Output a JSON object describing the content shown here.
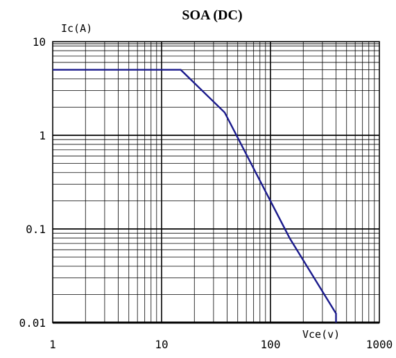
{
  "chart_data": {
    "type": "line",
    "title": "SOA (DC)",
    "xlabel": "Vce(v)",
    "ylabel": "Ic(A)",
    "xscale": "log",
    "yscale": "log",
    "xlim": [
      1,
      1000
    ],
    "ylim": [
      0.01,
      10
    ],
    "grid": true,
    "x_ticks": [
      "1",
      "10",
      "100",
      "1000"
    ],
    "y_ticks": [
      "10",
      "1",
      "0.1",
      "0.01"
    ],
    "series": [
      {
        "color": "#1a1a8c",
        "points": [
          {
            "x": 1,
            "y": 5
          },
          {
            "x": 15,
            "y": 5
          },
          {
            "x": 38,
            "y": 1.75
          },
          {
            "x": 150,
            "y": 0.08
          },
          {
            "x": 400,
            "y": 0.0125
          },
          {
            "x": 400,
            "y": 0.01
          }
        ]
      }
    ]
  },
  "colors": {
    "curve": "#1a1a8c",
    "grid": "#000000",
    "background": "#ffffff"
  }
}
